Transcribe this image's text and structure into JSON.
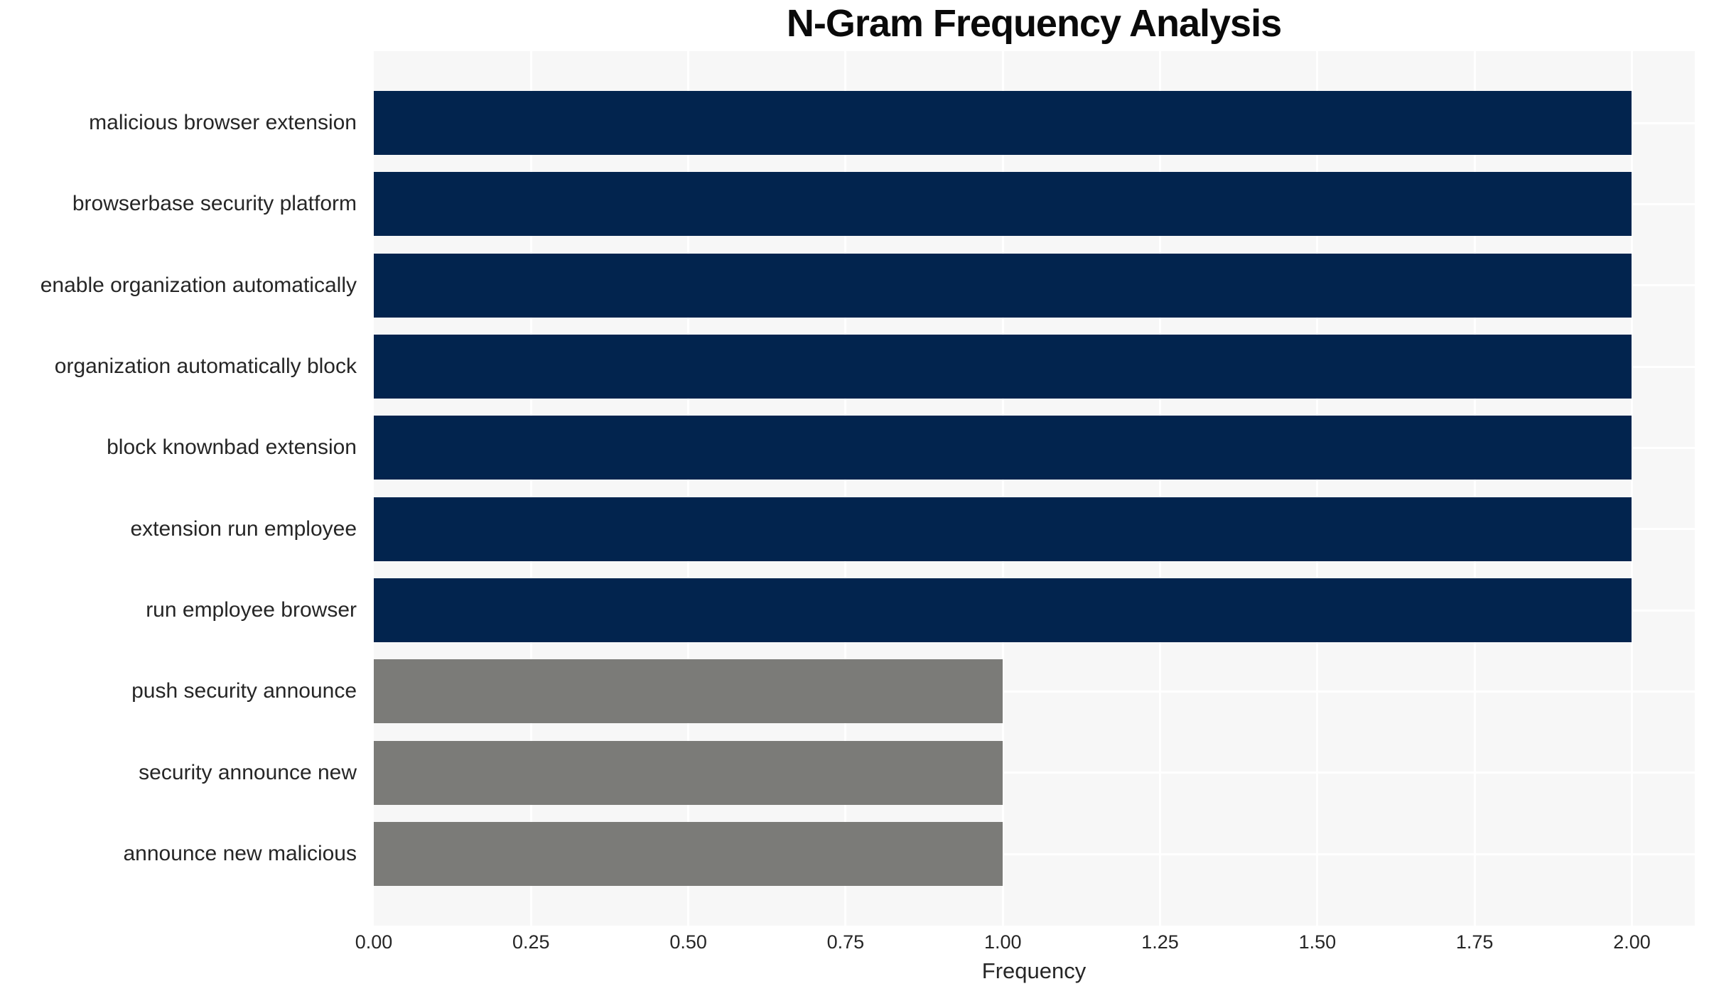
{
  "chart_data": {
    "type": "bar",
    "orientation": "horizontal",
    "title": "N-Gram Frequency Analysis",
    "xlabel": "Frequency",
    "ylabel": "",
    "categories": [
      "malicious browser extension",
      "browserbase security platform",
      "enable organization automatically",
      "organization automatically block",
      "block knownbad extension",
      "extension run employee",
      "run employee browser",
      "push security announce",
      "security announce new",
      "announce new malicious"
    ],
    "values": [
      2,
      2,
      2,
      2,
      2,
      2,
      2,
      1,
      1,
      1
    ],
    "bar_colors": [
      "#02244e",
      "#02244e",
      "#02244e",
      "#02244e",
      "#02244e",
      "#02244e",
      "#02244e",
      "#7b7b78",
      "#7b7b78",
      "#7b7b78"
    ],
    "xlim": [
      0,
      2.1
    ],
    "xticks": [
      0,
      0.25,
      0.5,
      0.75,
      1.0,
      1.25,
      1.5,
      1.75,
      2.0
    ],
    "xtick_labels": [
      "0.00",
      "0.25",
      "0.50",
      "0.75",
      "1.00",
      "1.25",
      "1.50",
      "1.75",
      "2.00"
    ],
    "grid": true,
    "grid_color": "#ffffff",
    "plot_background": "#f7f7f7",
    "legend": false
  }
}
